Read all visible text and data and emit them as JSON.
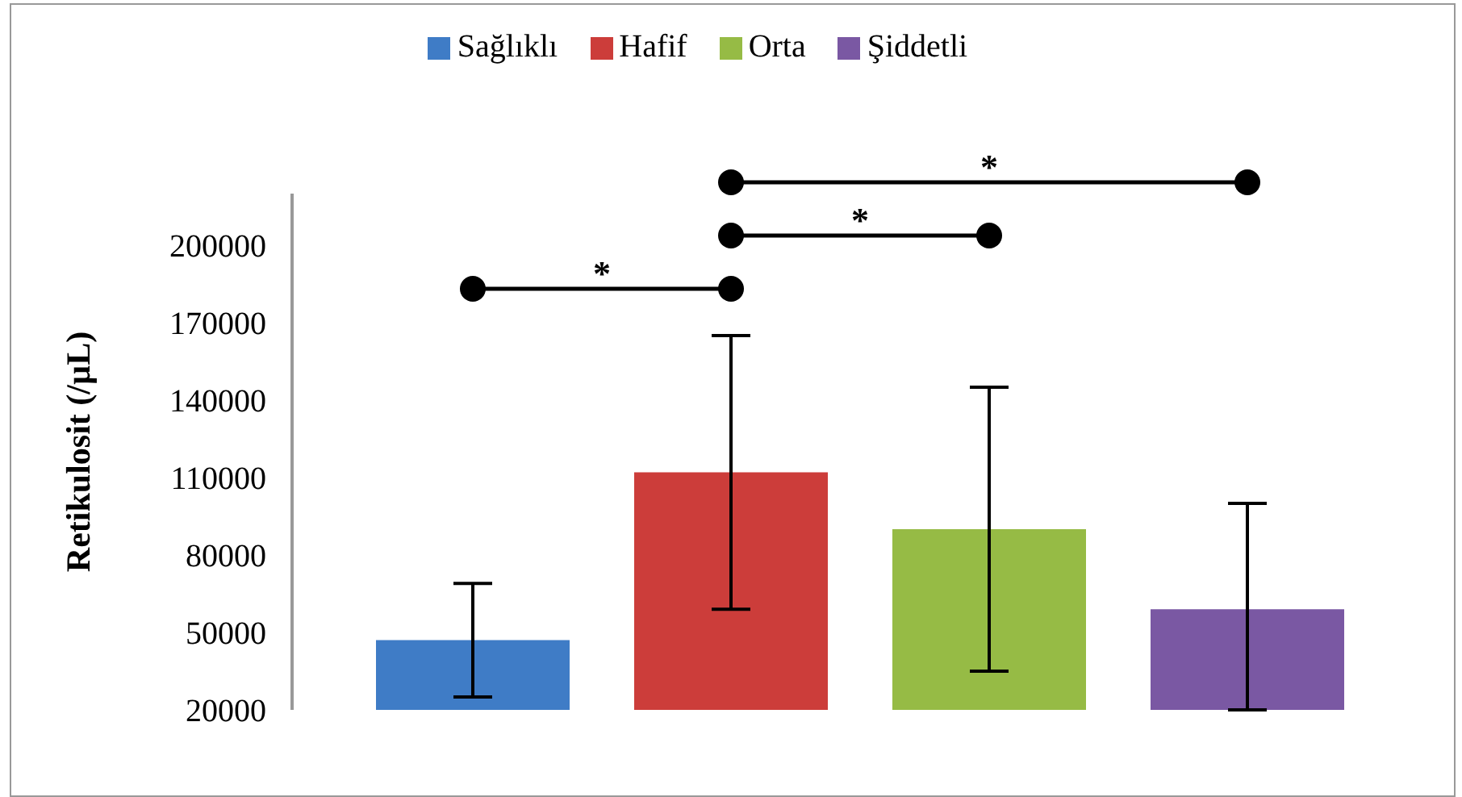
{
  "chart_data": {
    "type": "bar",
    "ylabel": "Retikulosit (/µL)",
    "categories": [
      null
    ],
    "series": [
      {
        "name": "Sağlıklı",
        "color": "#3f7cc6",
        "values": [
          47000
        ],
        "errors": [
          22000
        ]
      },
      {
        "name": "Hafif",
        "color": "#cc3d3a",
        "values": [
          112000
        ],
        "errors": [
          53000
        ]
      },
      {
        "name": "Orta",
        "color": "#96bb45",
        "values": [
          90000
        ],
        "errors": [
          55000
        ]
      },
      {
        "name": "Şiddetli",
        "color": "#7a58a3",
        "values": [
          59000
        ],
        "errors": [
          [
            20000,
            100000
          ]
        ]
      }
    ],
    "ylim": [
      20000,
      220000
    ],
    "yticks": [
      20000,
      50000,
      80000,
      110000,
      140000,
      170000,
      200000
    ],
    "grid": false,
    "legend": "top",
    "annotations": [
      "*",
      "*",
      "*"
    ]
  }
}
